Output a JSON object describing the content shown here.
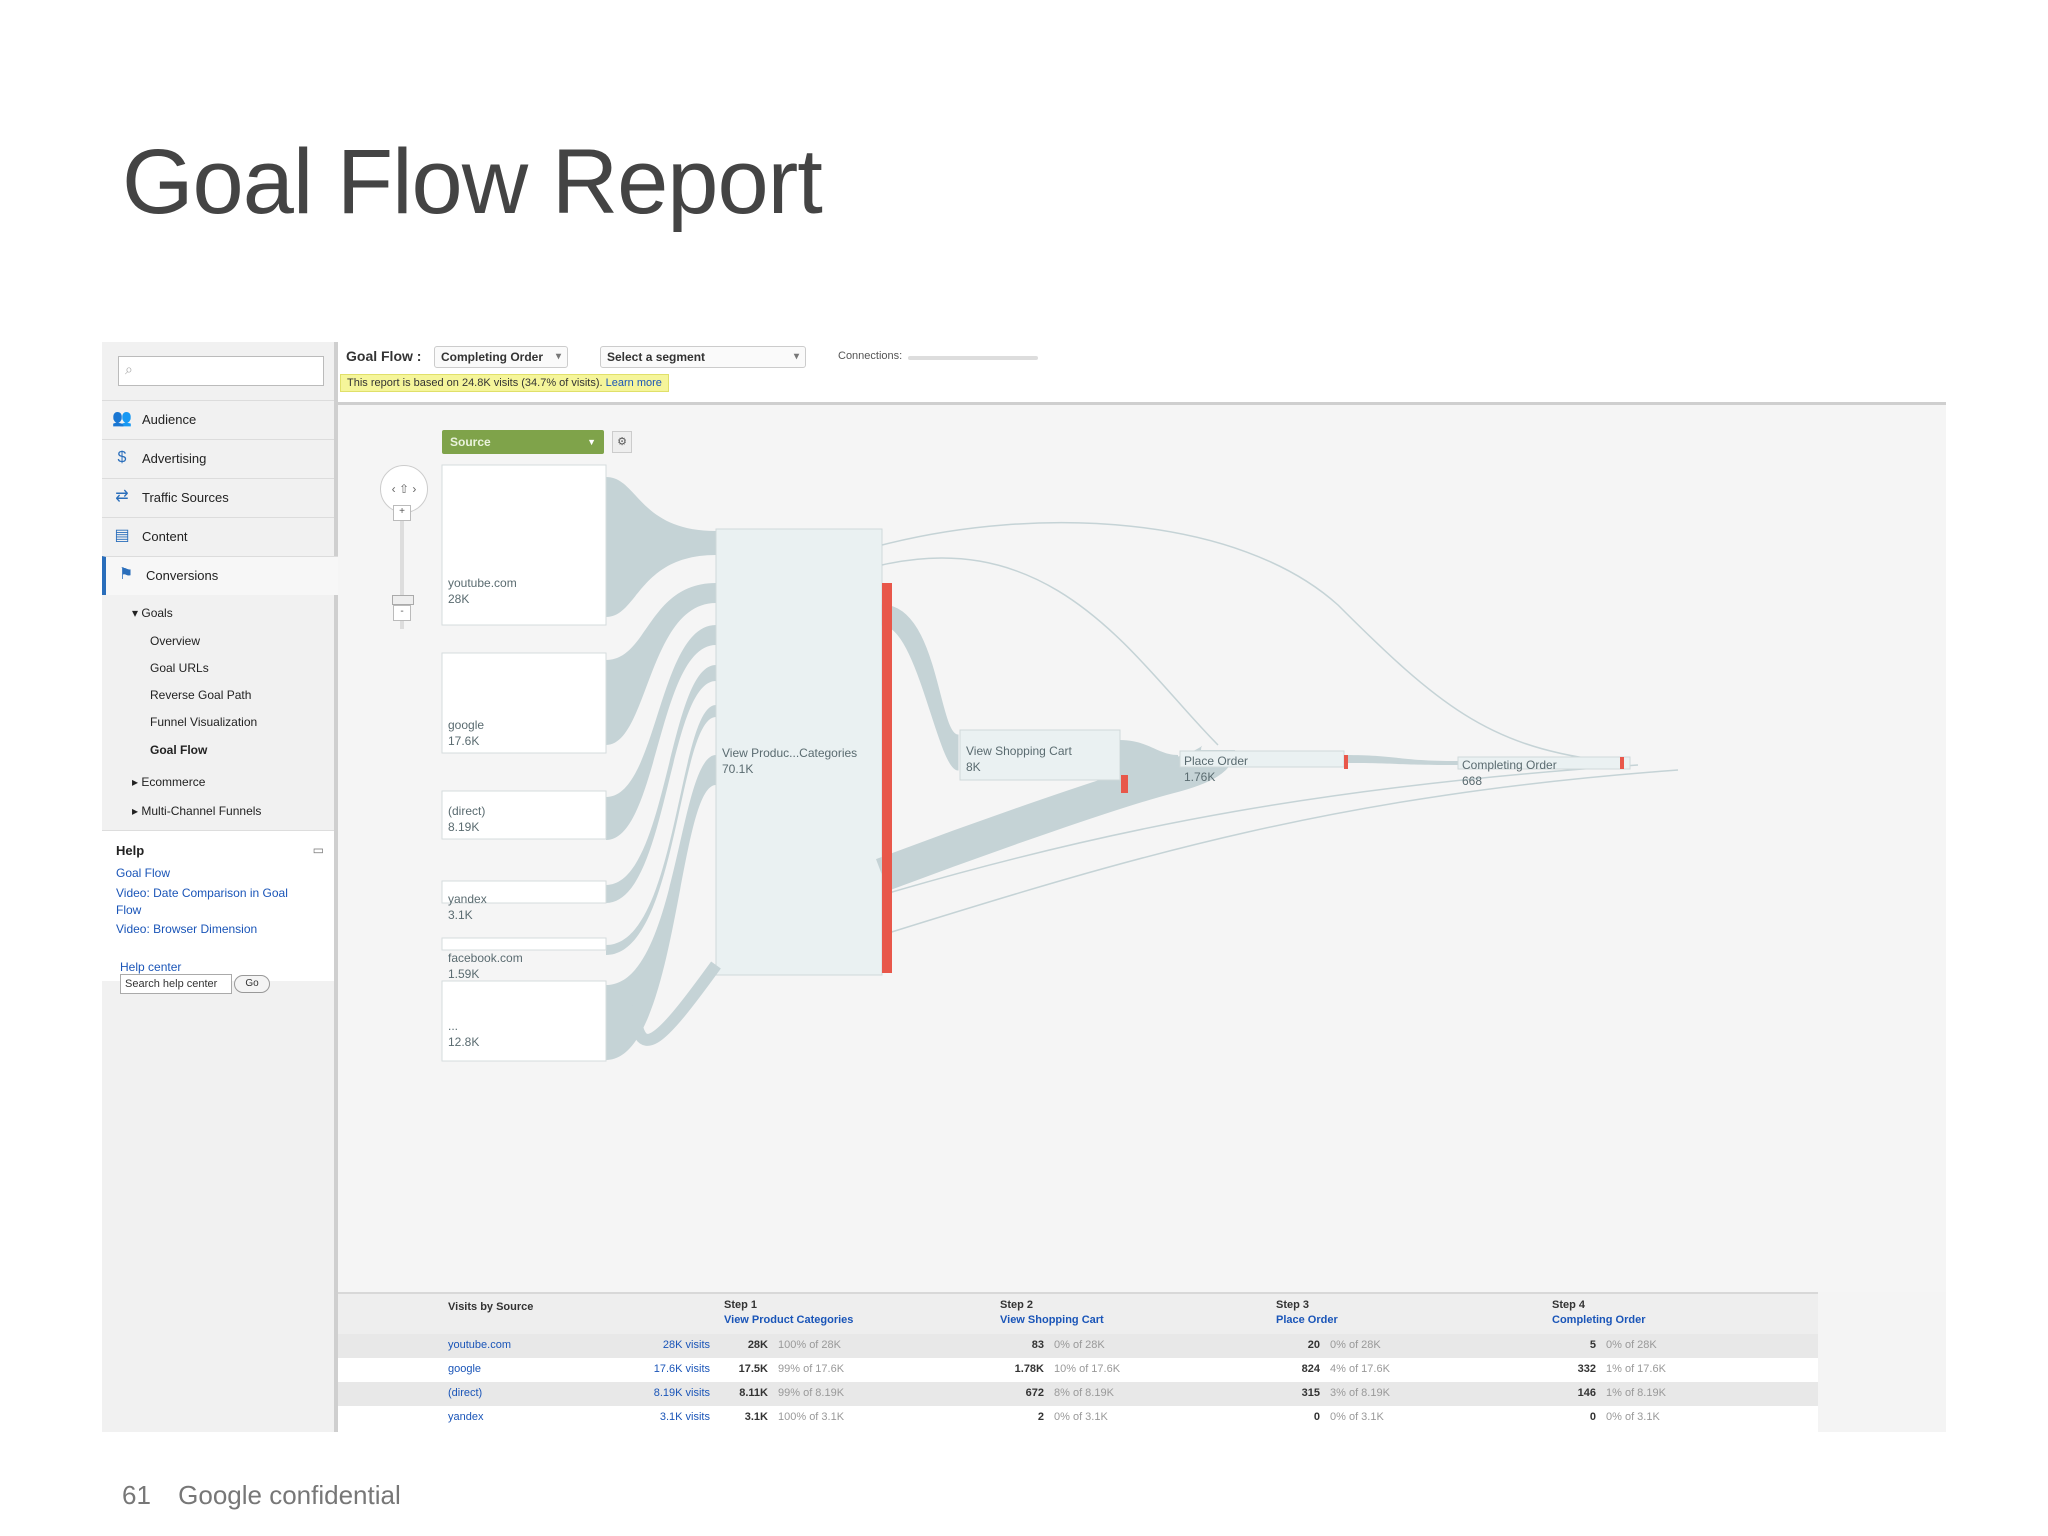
{
  "slide": {
    "title": "Goal Flow Report",
    "page_number": "61",
    "footer_text": "Google confidential"
  },
  "sidebar": {
    "search_placeholder": "",
    "nav": [
      {
        "label": "Audience",
        "icon": "people-icon"
      },
      {
        "label": "Advertising",
        "icon": "dollar-icon"
      },
      {
        "label": "Traffic Sources",
        "icon": "arrows-icon"
      },
      {
        "label": "Content",
        "icon": "content-icon"
      },
      {
        "label": "Conversions",
        "icon": "flag-icon"
      }
    ],
    "goals_label": "Goals",
    "goal_items": [
      "Overview",
      "Goal URLs",
      "Reverse Goal Path",
      "Funnel Visualization",
      "Goal Flow"
    ],
    "ecommerce_label": "Ecommerce",
    "mcf_label": "Multi-Channel Funnels",
    "help": {
      "title": "Help",
      "links": [
        "Goal Flow",
        "Video: Date Comparison in Goal Flow",
        "Video: Browser Dimension"
      ],
      "help_center": "Help center",
      "search_value": "Search help center",
      "go": "Go"
    }
  },
  "topbar": {
    "label": "Goal Flow :",
    "goal_select": "Completing Order",
    "segment_select": "Select a segment",
    "connections_label": "Connections:",
    "notice": "This report is based on 24.8K visits (34.7% of visits).",
    "learn_more": "Learn more"
  },
  "flow": {
    "dimension_select": "Source",
    "pan_label": "‹ ⇧ ›",
    "zoom_in": "+",
    "zoom_out": "-",
    "sources": [
      {
        "name": "youtube.com",
        "value": "28K"
      },
      {
        "name": "google",
        "value": "17.6K"
      },
      {
        "name": "(direct)",
        "value": "8.19K"
      },
      {
        "name": "yandex",
        "value": "3.1K"
      },
      {
        "name": "facebook.com",
        "value": "1.59K"
      },
      {
        "name": "...",
        "value": "12.8K"
      }
    ],
    "steps": [
      {
        "name": "View Produc...Categories",
        "value": "70.1K"
      },
      {
        "name": "View Shopping Cart",
        "value": "8K"
      },
      {
        "name": "Place Order",
        "value": "1.76K"
      },
      {
        "name": "Completing Order",
        "value": "668"
      }
    ],
    "colors": {
      "node": "#eef3f4",
      "link": "#c5d3d6",
      "dropoff": "#e8574a",
      "source_button": "#7fa34a"
    }
  },
  "table": {
    "source_header": "Visits by Source",
    "steps": [
      {
        "step": "Step 1",
        "name": "View Product Categories"
      },
      {
        "step": "Step 2",
        "name": "View Shopping Cart"
      },
      {
        "step": "Step 3",
        "name": "Place Order"
      },
      {
        "step": "Step 4",
        "name": "Completing Order"
      }
    ],
    "rows": [
      {
        "source": "youtube.com",
        "visits": "28K visits",
        "cells": [
          [
            "28K",
            "100% of 28K"
          ],
          [
            "83",
            "0% of 28K"
          ],
          [
            "20",
            "0% of 28K"
          ],
          [
            "5",
            "0% of 28K"
          ]
        ]
      },
      {
        "source": "google",
        "visits": "17.6K visits",
        "cells": [
          [
            "17.5K",
            "99% of 17.6K"
          ],
          [
            "1.78K",
            "10% of 17.6K"
          ],
          [
            "824",
            "4% of 17.6K"
          ],
          [
            "332",
            "1% of 17.6K"
          ]
        ]
      },
      {
        "source": "(direct)",
        "visits": "8.19K visits",
        "cells": [
          [
            "8.11K",
            "99% of 8.19K"
          ],
          [
            "672",
            "8% of 8.19K"
          ],
          [
            "315",
            "3% of 8.19K"
          ],
          [
            "146",
            "1% of 8.19K"
          ]
        ]
      },
      {
        "source": "yandex",
        "visits": "3.1K visits",
        "cells": [
          [
            "3.1K",
            "100% of 3.1K"
          ],
          [
            "2",
            "0% of 3.1K"
          ],
          [
            "0",
            "0% of 3.1K"
          ],
          [
            "0",
            "0% of 3.1K"
          ]
        ]
      }
    ]
  }
}
